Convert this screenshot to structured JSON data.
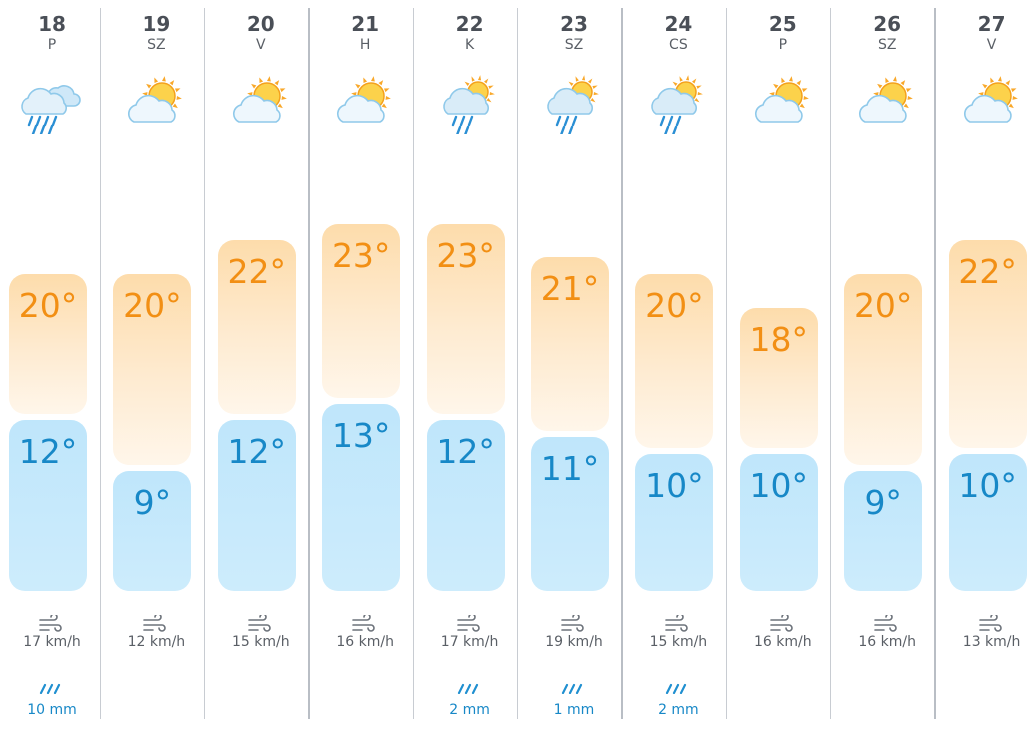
{
  "days": [
    {
      "date": "18",
      "dow": "P",
      "icon": "rain-cloud-icon",
      "high": "20°",
      "low": "12°",
      "wind": "17 km/h",
      "rain": "10 mm"
    },
    {
      "date": "19",
      "dow": "SZ",
      "icon": "partly-cloudy-icon",
      "high": "20°",
      "low": "9°",
      "wind": "12 km/h",
      "rain": ""
    },
    {
      "date": "20",
      "dow": "V",
      "icon": "partly-cloudy-icon",
      "high": "22°",
      "low": "12°",
      "wind": "15 km/h",
      "rain": ""
    },
    {
      "date": "21",
      "dow": "H",
      "icon": "partly-cloudy-icon",
      "high": "23°",
      "low": "13°",
      "wind": "16 km/h",
      "rain": ""
    },
    {
      "date": "22",
      "dow": "K",
      "icon": "sun-rain-cloud-icon",
      "high": "23°",
      "low": "12°",
      "wind": "17 km/h",
      "rain": "2 mm"
    },
    {
      "date": "23",
      "dow": "SZ",
      "icon": "sun-rain-cloud-icon",
      "high": "21°",
      "low": "11°",
      "wind": "19 km/h",
      "rain": "1 mm"
    },
    {
      "date": "24",
      "dow": "CS",
      "icon": "sun-rain-cloud-icon",
      "high": "20°",
      "low": "10°",
      "wind": "15 km/h",
      "rain": "2 mm"
    },
    {
      "date": "25",
      "dow": "P",
      "icon": "partly-cloudy-icon",
      "high": "18°",
      "low": "10°",
      "wind": "16 km/h",
      "rain": ""
    },
    {
      "date": "26",
      "dow": "SZ",
      "icon": "partly-cloudy-icon",
      "high": "20°",
      "low": "9°",
      "wind": "16 km/h",
      "rain": ""
    },
    {
      "date": "27",
      "dow": "V",
      "icon": "partly-cloudy-icon",
      "high": "22°",
      "low": "10°",
      "wind": "13 km/h",
      "rain": ""
    }
  ],
  "colors": {
    "high_text": "#f28f14",
    "low_text": "#1788c7",
    "rain_text": "#1788c7",
    "high_bar": "#fddcab",
    "low_bar": "#bfe6fb"
  }
}
